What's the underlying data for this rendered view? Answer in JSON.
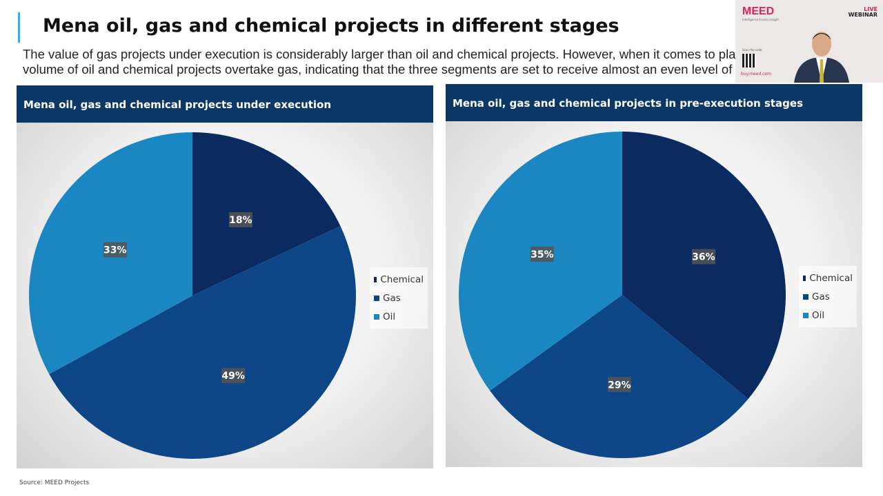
{
  "slide": {
    "title": "Mena oil, gas and chemical projects in different stages",
    "subtitle_line1": "The value of gas projects under execution is considerably larger than oil and chemical projects. However, when it comes to pla",
    "subtitle_line2": "volume of oil and chemical projects overtake gas, indicating that the three segments are set to receive almost an even level of",
    "source": "Source: MEED Projects"
  },
  "webcam": {
    "logo": "MEED",
    "tagline": "Intelligence.Events.Insight",
    "badge_live": "LIVE",
    "badge_webinar": "WEBINAR",
    "scan_text": "Scan the code",
    "url": "buy.meed.com"
  },
  "colors": {
    "Chemical": "#0b2a5f",
    "Gas": "#0d4686",
    "Oil": "#1a86c2",
    "header": "#0c3868"
  },
  "chart_data": [
    {
      "type": "pie",
      "title": "Mena oil, gas and chemical projects under execution",
      "categories": [
        "Chemical",
        "Gas",
        "Oil"
      ],
      "values": [
        18,
        49,
        33
      ],
      "labels": [
        "18%",
        "49%",
        "33%"
      ],
      "legend": "right"
    },
    {
      "type": "pie",
      "title": "Mena oil, gas and chemical projects in pre-execution stages",
      "categories": [
        "Chemical",
        "Gas",
        "Oil"
      ],
      "values": [
        36,
        29,
        35
      ],
      "labels": [
        "36%",
        "29%",
        "35%"
      ],
      "legend": "right"
    }
  ]
}
